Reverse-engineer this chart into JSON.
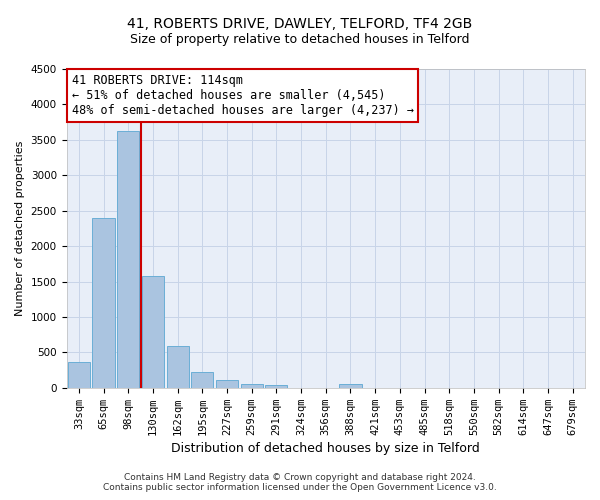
{
  "title": "41, ROBERTS DRIVE, DAWLEY, TELFORD, TF4 2GB",
  "subtitle": "Size of property relative to detached houses in Telford",
  "xlabel": "Distribution of detached houses by size in Telford",
  "ylabel": "Number of detached properties",
  "footer_line1": "Contains HM Land Registry data © Crown copyright and database right 2024.",
  "footer_line2": "Contains public sector information licensed under the Open Government Licence v3.0.",
  "categories": [
    "33sqm",
    "65sqm",
    "98sqm",
    "130sqm",
    "162sqm",
    "195sqm",
    "227sqm",
    "259sqm",
    "291sqm",
    "324sqm",
    "356sqm",
    "388sqm",
    "421sqm",
    "453sqm",
    "485sqm",
    "518sqm",
    "550sqm",
    "582sqm",
    "614sqm",
    "647sqm",
    "679sqm"
  ],
  "values": [
    370,
    2400,
    3620,
    1580,
    590,
    230,
    105,
    60,
    35,
    0,
    0,
    60,
    0,
    0,
    0,
    0,
    0,
    0,
    0,
    0,
    0
  ],
  "bar_color": "#aac4e0",
  "bar_edge_color": "#6baed6",
  "grid_color": "#c8d4e8",
  "background_color": "#e8eef8",
  "annotation_line1": "41 ROBERTS DRIVE: 114sqm",
  "annotation_line2": "← 51% of detached houses are smaller (4,545)",
  "annotation_line3": "48% of semi-detached houses are larger (4,237) →",
  "vline_color": "#cc0000",
  "annotation_box_edge_color": "#cc0000",
  "ylim": [
    0,
    4500
  ],
  "yticks": [
    0,
    500,
    1000,
    1500,
    2000,
    2500,
    3000,
    3500,
    4000,
    4500
  ],
  "title_fontsize": 10,
  "subtitle_fontsize": 9,
  "xlabel_fontsize": 9,
  "ylabel_fontsize": 8,
  "tick_fontsize": 7.5,
  "annotation_fontsize": 8.5,
  "footer_fontsize": 6.5
}
